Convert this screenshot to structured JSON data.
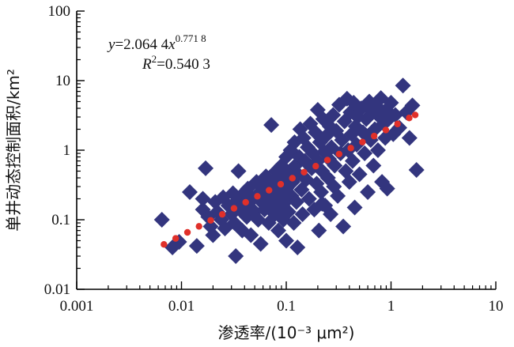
{
  "chart_data": {
    "type": "scatter",
    "x_scale": "log",
    "y_scale": "log",
    "xlim": [
      0.001,
      10
    ],
    "ylim": [
      0.01,
      100
    ],
    "x_ticks": [
      "0.001",
      "0.01",
      "0.1",
      "1",
      "10"
    ],
    "y_ticks": [
      "0.01",
      "0.1",
      "1",
      "10",
      "100"
    ],
    "xlabel": "渗透率/(10⁻³ μm²)",
    "ylabel": "单井动态控制面积/km²",
    "equation": {
      "line1_prefix": "y",
      "line1_mid": "=2.064 4",
      "line1_var": "x",
      "line1_exp": "0.771 8",
      "line2_prefix": "R",
      "line2_exp": "2",
      "line2_value": "=0.540 3"
    },
    "marker_color": "#33357e",
    "fit_color": "#e0302a",
    "series": [
      {
        "marker": "diamond",
        "points": [
          [
            0.0065,
            0.1
          ],
          [
            0.0082,
            0.04
          ],
          [
            0.0095,
            0.048
          ],
          [
            0.012,
            0.25
          ],
          [
            0.014,
            0.042
          ],
          [
            0.016,
            0.14
          ],
          [
            0.017,
            0.55
          ],
          [
            0.018,
            0.11
          ],
          [
            0.019,
            0.08
          ],
          [
            0.02,
            0.06
          ],
          [
            0.021,
            0.18
          ],
          [
            0.022,
            0.13
          ],
          [
            0.024,
            0.1
          ],
          [
            0.025,
            0.21
          ],
          [
            0.026,
            0.075
          ],
          [
            0.028,
            0.16
          ],
          [
            0.03,
            0.12
          ],
          [
            0.031,
            0.24
          ],
          [
            0.032,
            0.09
          ],
          [
            0.033,
            0.03
          ],
          [
            0.034,
            0.19
          ],
          [
            0.035,
            0.5
          ],
          [
            0.036,
            0.14
          ],
          [
            0.037,
            0.22
          ],
          [
            0.038,
            0.07
          ],
          [
            0.04,
            0.17
          ],
          [
            0.042,
            0.11
          ],
          [
            0.043,
            0.28
          ],
          [
            0.045,
            0.15
          ],
          [
            0.046,
            0.06
          ],
          [
            0.048,
            0.2
          ],
          [
            0.05,
            0.13
          ],
          [
            0.052,
            0.35
          ],
          [
            0.054,
            0.1
          ],
          [
            0.055,
            0.24
          ],
          [
            0.057,
            0.045
          ],
          [
            0.058,
            0.18
          ],
          [
            0.06,
            0.3
          ],
          [
            0.062,
            0.14
          ],
          [
            0.064,
            0.42
          ],
          [
            0.066,
            0.22
          ],
          [
            0.068,
            0.09
          ],
          [
            0.07,
            0.26
          ],
          [
            0.072,
            2.3
          ],
          [
            0.074,
            0.16
          ],
          [
            0.076,
            0.35
          ],
          [
            0.078,
            0.12
          ],
          [
            0.08,
            0.5
          ],
          [
            0.082,
            0.2
          ],
          [
            0.084,
            0.07
          ],
          [
            0.086,
            0.3
          ],
          [
            0.088,
            0.15
          ],
          [
            0.09,
            0.6
          ],
          [
            0.092,
            0.24
          ],
          [
            0.094,
            0.1
          ],
          [
            0.096,
            0.4
          ],
          [
            0.098,
            0.18
          ],
          [
            0.1,
            0.8
          ],
          [
            0.1,
            0.28
          ],
          [
            0.1,
            0.05
          ],
          [
            0.105,
            0.13
          ],
          [
            0.108,
            0.5
          ],
          [
            0.11,
            1.0
          ],
          [
            0.112,
            0.22
          ],
          [
            0.115,
            0.35
          ],
          [
            0.118,
            0.09
          ],
          [
            0.12,
            1.3
          ],
          [
            0.122,
            0.6
          ],
          [
            0.125,
            0.18
          ],
          [
            0.128,
            0.04
          ],
          [
            0.13,
            0.45
          ],
          [
            0.133,
            0.8
          ],
          [
            0.136,
            2.0
          ],
          [
            0.14,
            0.27
          ],
          [
            0.143,
            0.12
          ],
          [
            0.146,
            1.5
          ],
          [
            0.15,
            0.7
          ],
          [
            0.155,
            0.38
          ],
          [
            0.16,
            1.1
          ],
          [
            0.165,
            0.2
          ],
          [
            0.17,
            2.4
          ],
          [
            0.175,
            0.55
          ],
          [
            0.18,
            0.9
          ],
          [
            0.185,
            0.14
          ],
          [
            0.19,
            1.8
          ],
          [
            0.195,
            0.33
          ],
          [
            0.2,
            3.8
          ],
          [
            0.2,
            0.7
          ],
          [
            0.205,
            0.07
          ],
          [
            0.21,
            1.3
          ],
          [
            0.215,
            0.25
          ],
          [
            0.22,
            0.5
          ],
          [
            0.225,
            2.8
          ],
          [
            0.23,
            0.95
          ],
          [
            0.235,
            0.16
          ],
          [
            0.24,
            1.6
          ],
          [
            0.25,
            0.4
          ],
          [
            0.255,
            0.75
          ],
          [
            0.26,
            2.2
          ],
          [
            0.265,
            0.12
          ],
          [
            0.27,
            1.1
          ],
          [
            0.28,
            3.2
          ],
          [
            0.285,
            0.3
          ],
          [
            0.29,
            0.6
          ],
          [
            0.3,
            1.9
          ],
          [
            0.31,
            0.22
          ],
          [
            0.32,
            4.5
          ],
          [
            0.33,
            0.9
          ],
          [
            0.34,
            1.4
          ],
          [
            0.35,
            0.08
          ],
          [
            0.36,
            2.6
          ],
          [
            0.37,
            0.5
          ],
          [
            0.38,
            5.5
          ],
          [
            0.39,
            1.0
          ],
          [
            0.4,
            0.35
          ],
          [
            0.41,
            3.5
          ],
          [
            0.42,
            1.7
          ],
          [
            0.43,
            0.7
          ],
          [
            0.44,
            4.8
          ],
          [
            0.45,
            0.15
          ],
          [
            0.46,
            2.2
          ],
          [
            0.47,
            1.2
          ],
          [
            0.48,
            3.0
          ],
          [
            0.5,
            0.45
          ],
          [
            0.52,
            4.0
          ],
          [
            0.54,
            1.8
          ],
          [
            0.56,
            0.9
          ],
          [
            0.58,
            2.8
          ],
          [
            0.6,
            0.25
          ],
          [
            0.62,
            5.0
          ],
          [
            0.64,
            1.4
          ],
          [
            0.66,
            3.6
          ],
          [
            0.68,
            0.6
          ],
          [
            0.7,
            2.0
          ],
          [
            0.72,
            4.4
          ],
          [
            0.75,
            1.0
          ],
          [
            0.78,
            3.0
          ],
          [
            0.8,
            5.6
          ],
          [
            0.82,
            0.35
          ],
          [
            0.85,
            2.4
          ],
          [
            0.88,
            1.5
          ],
          [
            0.9,
            3.8
          ],
          [
            0.92,
            0.28
          ],
          [
            0.95,
            2.8
          ],
          [
            1.0,
            4.8
          ],
          [
            1.05,
            1.7
          ],
          [
            1.1,
            3.2
          ],
          [
            1.2,
            2.1
          ],
          [
            1.3,
            8.5
          ],
          [
            1.4,
            3.5
          ],
          [
            1.5,
            1.5
          ],
          [
            1.6,
            4.4
          ],
          [
            1.75,
            0.52
          ],
          [
            0.22,
            0.17
          ],
          [
            0.016,
            0.2
          ]
        ]
      },
      {
        "marker": "dot",
        "points": [
          [
            0.0068,
            0.0442
          ],
          [
            0.0088,
            0.0539
          ],
          [
            0.0114,
            0.0658
          ],
          [
            0.0147,
            0.0803
          ],
          [
            0.019,
            0.098
          ],
          [
            0.0245,
            0.1196
          ],
          [
            0.0317,
            0.146
          ],
          [
            0.041,
            0.1782
          ],
          [
            0.053,
            0.2175
          ],
          [
            0.0685,
            0.2655
          ],
          [
            0.0885,
            0.3241
          ],
          [
            0.1144,
            0.3956
          ],
          [
            0.1479,
            0.4829
          ],
          [
            0.1912,
            0.5894
          ],
          [
            0.2471,
            0.7194
          ],
          [
            0.3194,
            0.8782
          ],
          [
            0.4129,
            1.072
          ],
          [
            0.5337,
            1.3084
          ],
          [
            0.6899,
            1.5972
          ],
          [
            0.8918,
            1.9496
          ],
          [
            1.1528,
            2.3798
          ],
          [
            1.4901,
            2.905
          ],
          [
            1.7,
            3.21
          ]
        ]
      }
    ]
  }
}
